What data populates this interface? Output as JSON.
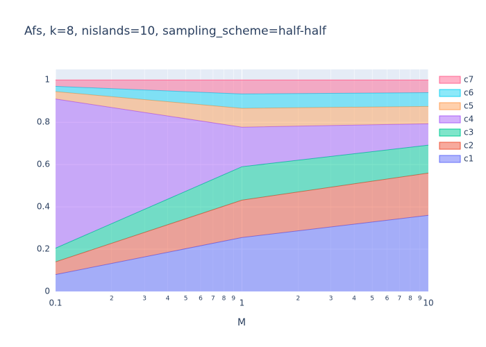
{
  "chart_data": {
    "type": "stacked_area",
    "title": "Afs, k=8, nislands=10, sampling_scheme=half-half",
    "x_label": "M",
    "x": [
      0.1,
      1,
      10
    ],
    "x_log": true,
    "xlim": [
      0.1,
      10
    ],
    "xticks": [
      0.1,
      {
        "value": 0.2,
        "label": "2"
      },
      {
        "value": 0.3,
        "label": "3"
      },
      {
        "value": 0.4,
        "label": "4"
      },
      {
        "value": 0.5,
        "label": "5"
      },
      {
        "value": 0.6,
        "label": "6"
      },
      {
        "value": 0.7,
        "label": "7"
      },
      {
        "value": 0.8,
        "label": "8"
      },
      {
        "value": 0.9,
        "label": "9"
      },
      1,
      {
        "value": 2,
        "label": "2"
      },
      {
        "value": 3,
        "label": "3"
      },
      {
        "value": 4,
        "label": "4"
      },
      {
        "value": 5,
        "label": "5"
      },
      {
        "value": 6,
        "label": "6"
      },
      {
        "value": 7,
        "label": "7"
      },
      {
        "value": 8,
        "label": "8"
      },
      {
        "value": 9,
        "label": "9"
      },
      10
    ],
    "ylim": [
      0,
      1.05
    ],
    "yticks": [
      0,
      0.2,
      0.4,
      0.6,
      0.8,
      1
    ],
    "grid": true,
    "legend_position": "right",
    "series": [
      {
        "name": "c1",
        "color": "#636efa",
        "values": [
          0.08,
          0.255,
          0.36
        ]
      },
      {
        "name": "c2",
        "color": "#ef553b",
        "values": [
          0.06,
          0.177,
          0.2
        ]
      },
      {
        "name": "c3",
        "color": "#00cc96",
        "values": [
          0.065,
          0.158,
          0.132
        ]
      },
      {
        "name": "c4",
        "color": "#ab63fa",
        "values": [
          0.705,
          0.187,
          0.101
        ]
      },
      {
        "name": "c5",
        "color": "#ffa15a",
        "values": [
          0.035,
          0.089,
          0.082
        ]
      },
      {
        "name": "c6",
        "color": "#19d3f3",
        "values": [
          0.025,
          0.068,
          0.065
        ]
      },
      {
        "name": "c7",
        "color": "#ff6692",
        "values": [
          0.03,
          0.066,
          0.06
        ]
      }
    ]
  }
}
